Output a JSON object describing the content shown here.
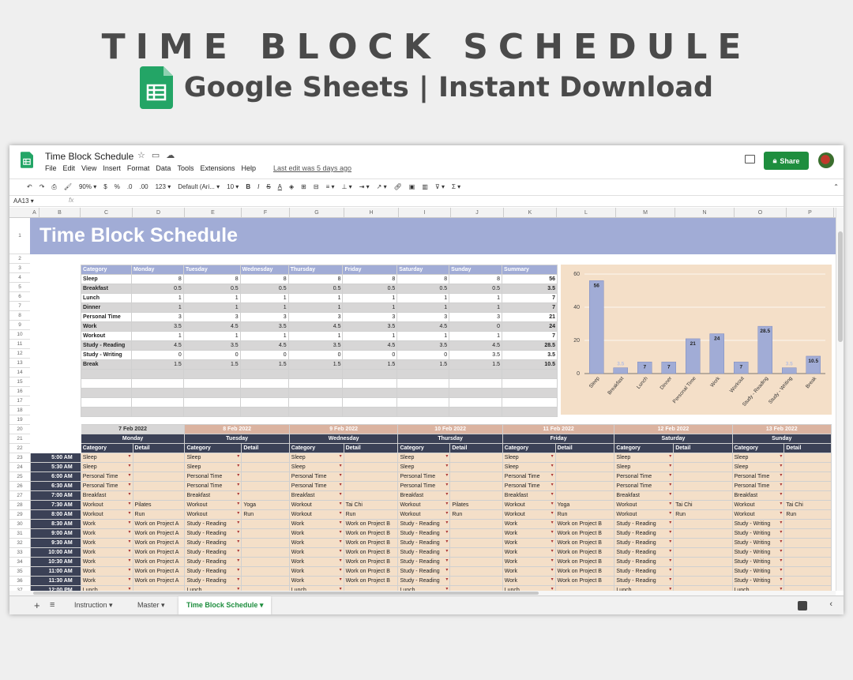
{
  "hero": {
    "title": "TIME BLOCK SCHEDULE",
    "subtitle": "Google Sheets | Instant Download"
  },
  "app": {
    "doc_title": "Time Block Schedule",
    "menus": [
      "File",
      "Edit",
      "View",
      "Insert",
      "Format",
      "Data",
      "Tools",
      "Extensions",
      "Help"
    ],
    "last_edit": "Last edit was 5 days ago",
    "share_label": "Share",
    "cell_ref": "AA13",
    "fx": "fx"
  },
  "toolbar": {
    "zoom": "90%",
    "currency": "$",
    "percent": "%",
    "dec_less": ".0",
    "dec_more": ".00",
    "format_more": "123",
    "font": "Default (Ari...",
    "font_size": "10",
    "bold": "B",
    "italic": "I",
    "strike": "S",
    "text_color": "A"
  },
  "columns": [
    "A",
    "B",
    "C",
    "D",
    "E",
    "F",
    "G",
    "H",
    "I",
    "J",
    "K",
    "L",
    "M",
    "N",
    "O",
    "P",
    "Q"
  ],
  "rows": [
    "1",
    "2",
    "3",
    "4",
    "5",
    "6",
    "7",
    "8",
    "9",
    "10",
    "11",
    "12",
    "13",
    "14",
    "15",
    "16",
    "17",
    "18",
    "19",
    "20",
    "21",
    "22",
    "23",
    "24",
    "25",
    "26",
    "27",
    "28",
    "29",
    "30",
    "31",
    "32",
    "33",
    "34",
    "35",
    "36",
    "37",
    "38"
  ],
  "banner_title": "Time Block Schedule",
  "summary": {
    "headers": [
      "Category",
      "Monday",
      "Tuesday",
      "Wednesday",
      "Thursday",
      "Friday",
      "Saturday",
      "Sunday",
      "Summary"
    ],
    "rows": [
      {
        "cat": "Sleep",
        "vals": [
          "8",
          "8",
          "8",
          "8",
          "8",
          "8",
          "8"
        ],
        "sum": "56"
      },
      {
        "cat": "Breakfast",
        "vals": [
          "0.5",
          "0.5",
          "0.5",
          "0.5",
          "0.5",
          "0.5",
          "0.5"
        ],
        "sum": "3.5"
      },
      {
        "cat": "Lunch",
        "vals": [
          "1",
          "1",
          "1",
          "1",
          "1",
          "1",
          "1"
        ],
        "sum": "7"
      },
      {
        "cat": "Dinner",
        "vals": [
          "1",
          "1",
          "1",
          "1",
          "1",
          "1",
          "1"
        ],
        "sum": "7"
      },
      {
        "cat": "Personal Time",
        "vals": [
          "3",
          "3",
          "3",
          "3",
          "3",
          "3",
          "3"
        ],
        "sum": "21"
      },
      {
        "cat": "Work",
        "vals": [
          "3.5",
          "4.5",
          "3.5",
          "4.5",
          "3.5",
          "4.5",
          "0"
        ],
        "sum": "24"
      },
      {
        "cat": "Workout",
        "vals": [
          "1",
          "1",
          "1",
          "1",
          "1",
          "1",
          "1"
        ],
        "sum": "7"
      },
      {
        "cat": "Study - Reading",
        "vals": [
          "4.5",
          "3.5",
          "4.5",
          "3.5",
          "4.5",
          "3.5",
          "4.5"
        ],
        "sum": "28.5"
      },
      {
        "cat": "Study - Writing",
        "vals": [
          "0",
          "0",
          "0",
          "0",
          "0",
          "0",
          "3.5"
        ],
        "sum": "3.5"
      },
      {
        "cat": "Break",
        "vals": [
          "1.5",
          "1.5",
          "1.5",
          "1.5",
          "1.5",
          "1.5",
          "1.5"
        ],
        "sum": "10.5"
      }
    ]
  },
  "chart_data": {
    "type": "bar",
    "categories": [
      "Sleep",
      "Breakfast",
      "Lunch",
      "Dinner",
      "Personal Time",
      "Work",
      "Workout",
      "Study - Reading",
      "Study - Writing",
      "Break"
    ],
    "values": [
      56,
      3.5,
      7,
      7,
      21,
      24,
      7,
      28.5,
      3.5,
      10.5
    ],
    "data_labels": [
      "56",
      "3.5",
      "7",
      "7",
      "21",
      "24",
      "7",
      "28.5",
      "3.5",
      "10.5"
    ],
    "yticks": [
      "0",
      "20",
      "40",
      "60"
    ],
    "ylim": [
      0,
      60
    ],
    "grid": true,
    "bar_color": "#a1acd6",
    "background": "#f4dfc8"
  },
  "schedule": {
    "dates": [
      "7 Feb 2022",
      "8 Feb 2022",
      "9 Feb 2022",
      "10 Feb 2022",
      "11 Feb 2022",
      "12 Feb 2022",
      "13 Feb 2022"
    ],
    "days": [
      "Monday",
      "Tuesday",
      "Wednesday",
      "Thursday",
      "Friday",
      "Saturday",
      "Sunday"
    ],
    "category_label": "Category",
    "detail_label": "Detail",
    "slots": [
      {
        "time": "5:00 AM",
        "cells": [
          [
            "Sleep",
            ""
          ],
          [
            "Sleep",
            ""
          ],
          [
            "Sleep",
            ""
          ],
          [
            "Sleep",
            ""
          ],
          [
            "Sleep",
            ""
          ],
          [
            "Sleep",
            ""
          ],
          [
            "Sleep",
            ""
          ]
        ]
      },
      {
        "time": "5:30 AM",
        "cells": [
          [
            "Sleep",
            ""
          ],
          [
            "Sleep",
            ""
          ],
          [
            "Sleep",
            ""
          ],
          [
            "Sleep",
            ""
          ],
          [
            "Sleep",
            ""
          ],
          [
            "Sleep",
            ""
          ],
          [
            "Sleep",
            ""
          ]
        ]
      },
      {
        "time": "6:00 AM",
        "cells": [
          [
            "Personal Time",
            ""
          ],
          [
            "Personal Time",
            ""
          ],
          [
            "Personal Time",
            ""
          ],
          [
            "Personal Time",
            ""
          ],
          [
            "Personal Time",
            ""
          ],
          [
            "Personal Time",
            ""
          ],
          [
            "Personal Time",
            ""
          ]
        ]
      },
      {
        "time": "6:30 AM",
        "cells": [
          [
            "Personal Time",
            ""
          ],
          [
            "Personal Time",
            ""
          ],
          [
            "Personal Time",
            ""
          ],
          [
            "Personal Time",
            ""
          ],
          [
            "Personal Time",
            ""
          ],
          [
            "Personal Time",
            ""
          ],
          [
            "Personal Time",
            ""
          ]
        ]
      },
      {
        "time": "7:00 AM",
        "cells": [
          [
            "Breakfast",
            ""
          ],
          [
            "Breakfast",
            ""
          ],
          [
            "Breakfast",
            ""
          ],
          [
            "Breakfast",
            ""
          ],
          [
            "Breakfast",
            ""
          ],
          [
            "Breakfast",
            ""
          ],
          [
            "Breakfast",
            ""
          ]
        ]
      },
      {
        "time": "7:30 AM",
        "cells": [
          [
            "Workout",
            "Pilates"
          ],
          [
            "Workout",
            "Yoga"
          ],
          [
            "Workout",
            "Tai Chi"
          ],
          [
            "Workout",
            "Pilates"
          ],
          [
            "Workout",
            "Yoga"
          ],
          [
            "Workout",
            "Tai Chi"
          ],
          [
            "Workout",
            "Tai Chi"
          ]
        ]
      },
      {
        "time": "8:00 AM",
        "cells": [
          [
            "Workout",
            "Run"
          ],
          [
            "Workout",
            "Run"
          ],
          [
            "Workout",
            "Run"
          ],
          [
            "Workout",
            "Run"
          ],
          [
            "Workout",
            "Run"
          ],
          [
            "Workout",
            "Run"
          ],
          [
            "Workout",
            "Run"
          ]
        ]
      },
      {
        "time": "8:30 AM",
        "cells": [
          [
            "Work",
            "Work on Project A"
          ],
          [
            "Study - Reading",
            ""
          ],
          [
            "Work",
            "Work on Project B"
          ],
          [
            "Study - Reading",
            ""
          ],
          [
            "Work",
            "Work on Project B"
          ],
          [
            "Study - Reading",
            ""
          ],
          [
            "Study - Writing",
            ""
          ]
        ]
      },
      {
        "time": "9:00 AM",
        "cells": [
          [
            "Work",
            "Work on Project A"
          ],
          [
            "Study - Reading",
            ""
          ],
          [
            "Work",
            "Work on Project B"
          ],
          [
            "Study - Reading",
            ""
          ],
          [
            "Work",
            "Work on Project B"
          ],
          [
            "Study - Reading",
            ""
          ],
          [
            "Study - Writing",
            ""
          ]
        ]
      },
      {
        "time": "9:30 AM",
        "cells": [
          [
            "Work",
            "Work on Project A"
          ],
          [
            "Study - Reading",
            ""
          ],
          [
            "Work",
            "Work on Project B"
          ],
          [
            "Study - Reading",
            ""
          ],
          [
            "Work",
            "Work on Project B"
          ],
          [
            "Study - Reading",
            ""
          ],
          [
            "Study - Writing",
            ""
          ]
        ]
      },
      {
        "time": "10:00 AM",
        "cells": [
          [
            "Work",
            "Work on Project A"
          ],
          [
            "Study - Reading",
            ""
          ],
          [
            "Work",
            "Work on Project B"
          ],
          [
            "Study - Reading",
            ""
          ],
          [
            "Work",
            "Work on Project B"
          ],
          [
            "Study - Reading",
            ""
          ],
          [
            "Study - Writing",
            ""
          ]
        ]
      },
      {
        "time": "10:30 AM",
        "cells": [
          [
            "Work",
            "Work on Project A"
          ],
          [
            "Study - Reading",
            ""
          ],
          [
            "Work",
            "Work on Project B"
          ],
          [
            "Study - Reading",
            ""
          ],
          [
            "Work",
            "Work on Project B"
          ],
          [
            "Study - Reading",
            ""
          ],
          [
            "Study - Writing",
            ""
          ]
        ]
      },
      {
        "time": "11:00 AM",
        "cells": [
          [
            "Work",
            "Work on Project A"
          ],
          [
            "Study - Reading",
            ""
          ],
          [
            "Work",
            "Work on Project B"
          ],
          [
            "Study - Reading",
            ""
          ],
          [
            "Work",
            "Work on Project B"
          ],
          [
            "Study - Reading",
            ""
          ],
          [
            "Study - Writing",
            ""
          ]
        ]
      },
      {
        "time": "11:30 AM",
        "cells": [
          [
            "Work",
            "Work on Project A"
          ],
          [
            "Study - Reading",
            ""
          ],
          [
            "Work",
            "Work on Project B"
          ],
          [
            "Study - Reading",
            ""
          ],
          [
            "Work",
            "Work on Project B"
          ],
          [
            "Study - Reading",
            ""
          ],
          [
            "Study - Writing",
            ""
          ]
        ]
      },
      {
        "time": "12:00 PM",
        "cells": [
          [
            "Lunch",
            ""
          ],
          [
            "Lunch",
            ""
          ],
          [
            "Lunch",
            ""
          ],
          [
            "Lunch",
            ""
          ],
          [
            "Lunch",
            ""
          ],
          [
            "Lunch",
            ""
          ],
          [
            "Lunch",
            ""
          ]
        ]
      }
    ]
  },
  "tabs": [
    "Instruction",
    "Master",
    "Time Block Schedule"
  ],
  "active_tab": "Time Block Schedule",
  "colors": {
    "accent_green": "#1e8e3e",
    "banner": "#a1acd6",
    "dark_header": "#3b4156",
    "peach": "#f4dfc8",
    "date_header": "#dbb3a0"
  }
}
